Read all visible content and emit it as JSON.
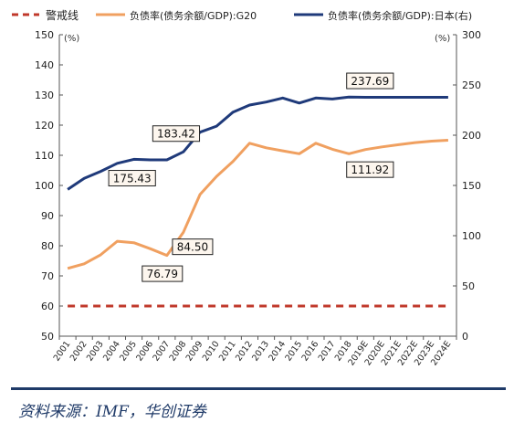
{
  "chart_data": {
    "type": "line",
    "legend": {
      "warning": "警戒线",
      "g20": "负债率(债务余额/GDP):G20",
      "japan": "负债率(债务余额/GDP):日本(右)"
    },
    "unit_left": "(%)",
    "unit_right": "(%)",
    "categories": [
      "2001",
      "2002",
      "2003",
      "2004",
      "2005",
      "2006",
      "2007",
      "2008",
      "2009",
      "2010",
      "2011",
      "2012",
      "2013",
      "2014",
      "2015",
      "2016",
      "2017",
      "2018",
      "2019E",
      "2020E",
      "2021E",
      "2022E",
      "2023E",
      "2024E"
    ],
    "left_axis": {
      "min": 50,
      "max": 150,
      "ticks": [
        50,
        60,
        70,
        80,
        90,
        100,
        110,
        120,
        130,
        140,
        150
      ]
    },
    "right_axis": {
      "min": 0,
      "max": 300,
      "ticks": [
        0,
        50,
        100,
        150,
        200,
        250,
        300
      ]
    },
    "series": [
      {
        "name": "警戒线",
        "axis": "left",
        "color": "#c0392b",
        "style": "dashed",
        "values": [
          60,
          60,
          60,
          60,
          60,
          60,
          60,
          60,
          60,
          60,
          60,
          60,
          60,
          60,
          60,
          60,
          60,
          60,
          60,
          60,
          60,
          60,
          60,
          60
        ]
      },
      {
        "name": "负债率(债务余额/GDP):G20",
        "axis": "left",
        "color": "#f0a060",
        "style": "solid",
        "values": [
          72.5,
          74,
          77,
          81.5,
          81,
          79,
          76.79,
          84.5,
          97,
          103,
          108,
          114,
          112.5,
          111.5,
          110.5,
          114,
          112,
          110.5,
          111.92,
          112.8,
          113.5,
          114.2,
          114.7,
          115
        ]
      },
      {
        "name": "负债率(债务余额/GDP):日本(右)",
        "axis": "right",
        "color": "#1f3a7a",
        "style": "solid",
        "values": [
          146,
          157,
          164,
          172,
          176,
          175.43,
          175.5,
          183.42,
          203,
          209,
          223,
          230,
          233,
          237,
          232,
          237,
          236,
          238,
          237.69,
          237.69,
          237.69,
          237.69,
          237.69,
          237.69
        ]
      }
    ],
    "annotations": [
      {
        "text": "175.43",
        "series": 2,
        "index": 5
      },
      {
        "text": "183.42",
        "series": 2,
        "index": 7
      },
      {
        "text": "84.50",
        "series": 1,
        "index": 7
      },
      {
        "text": "76.79",
        "series": 1,
        "index": 6
      },
      {
        "text": "237.69",
        "series": 2,
        "index": 18
      },
      {
        "text": "111.92",
        "series": 1,
        "index": 18
      }
    ],
    "grid": false
  },
  "source": "资料来源：IMF，华创证券"
}
